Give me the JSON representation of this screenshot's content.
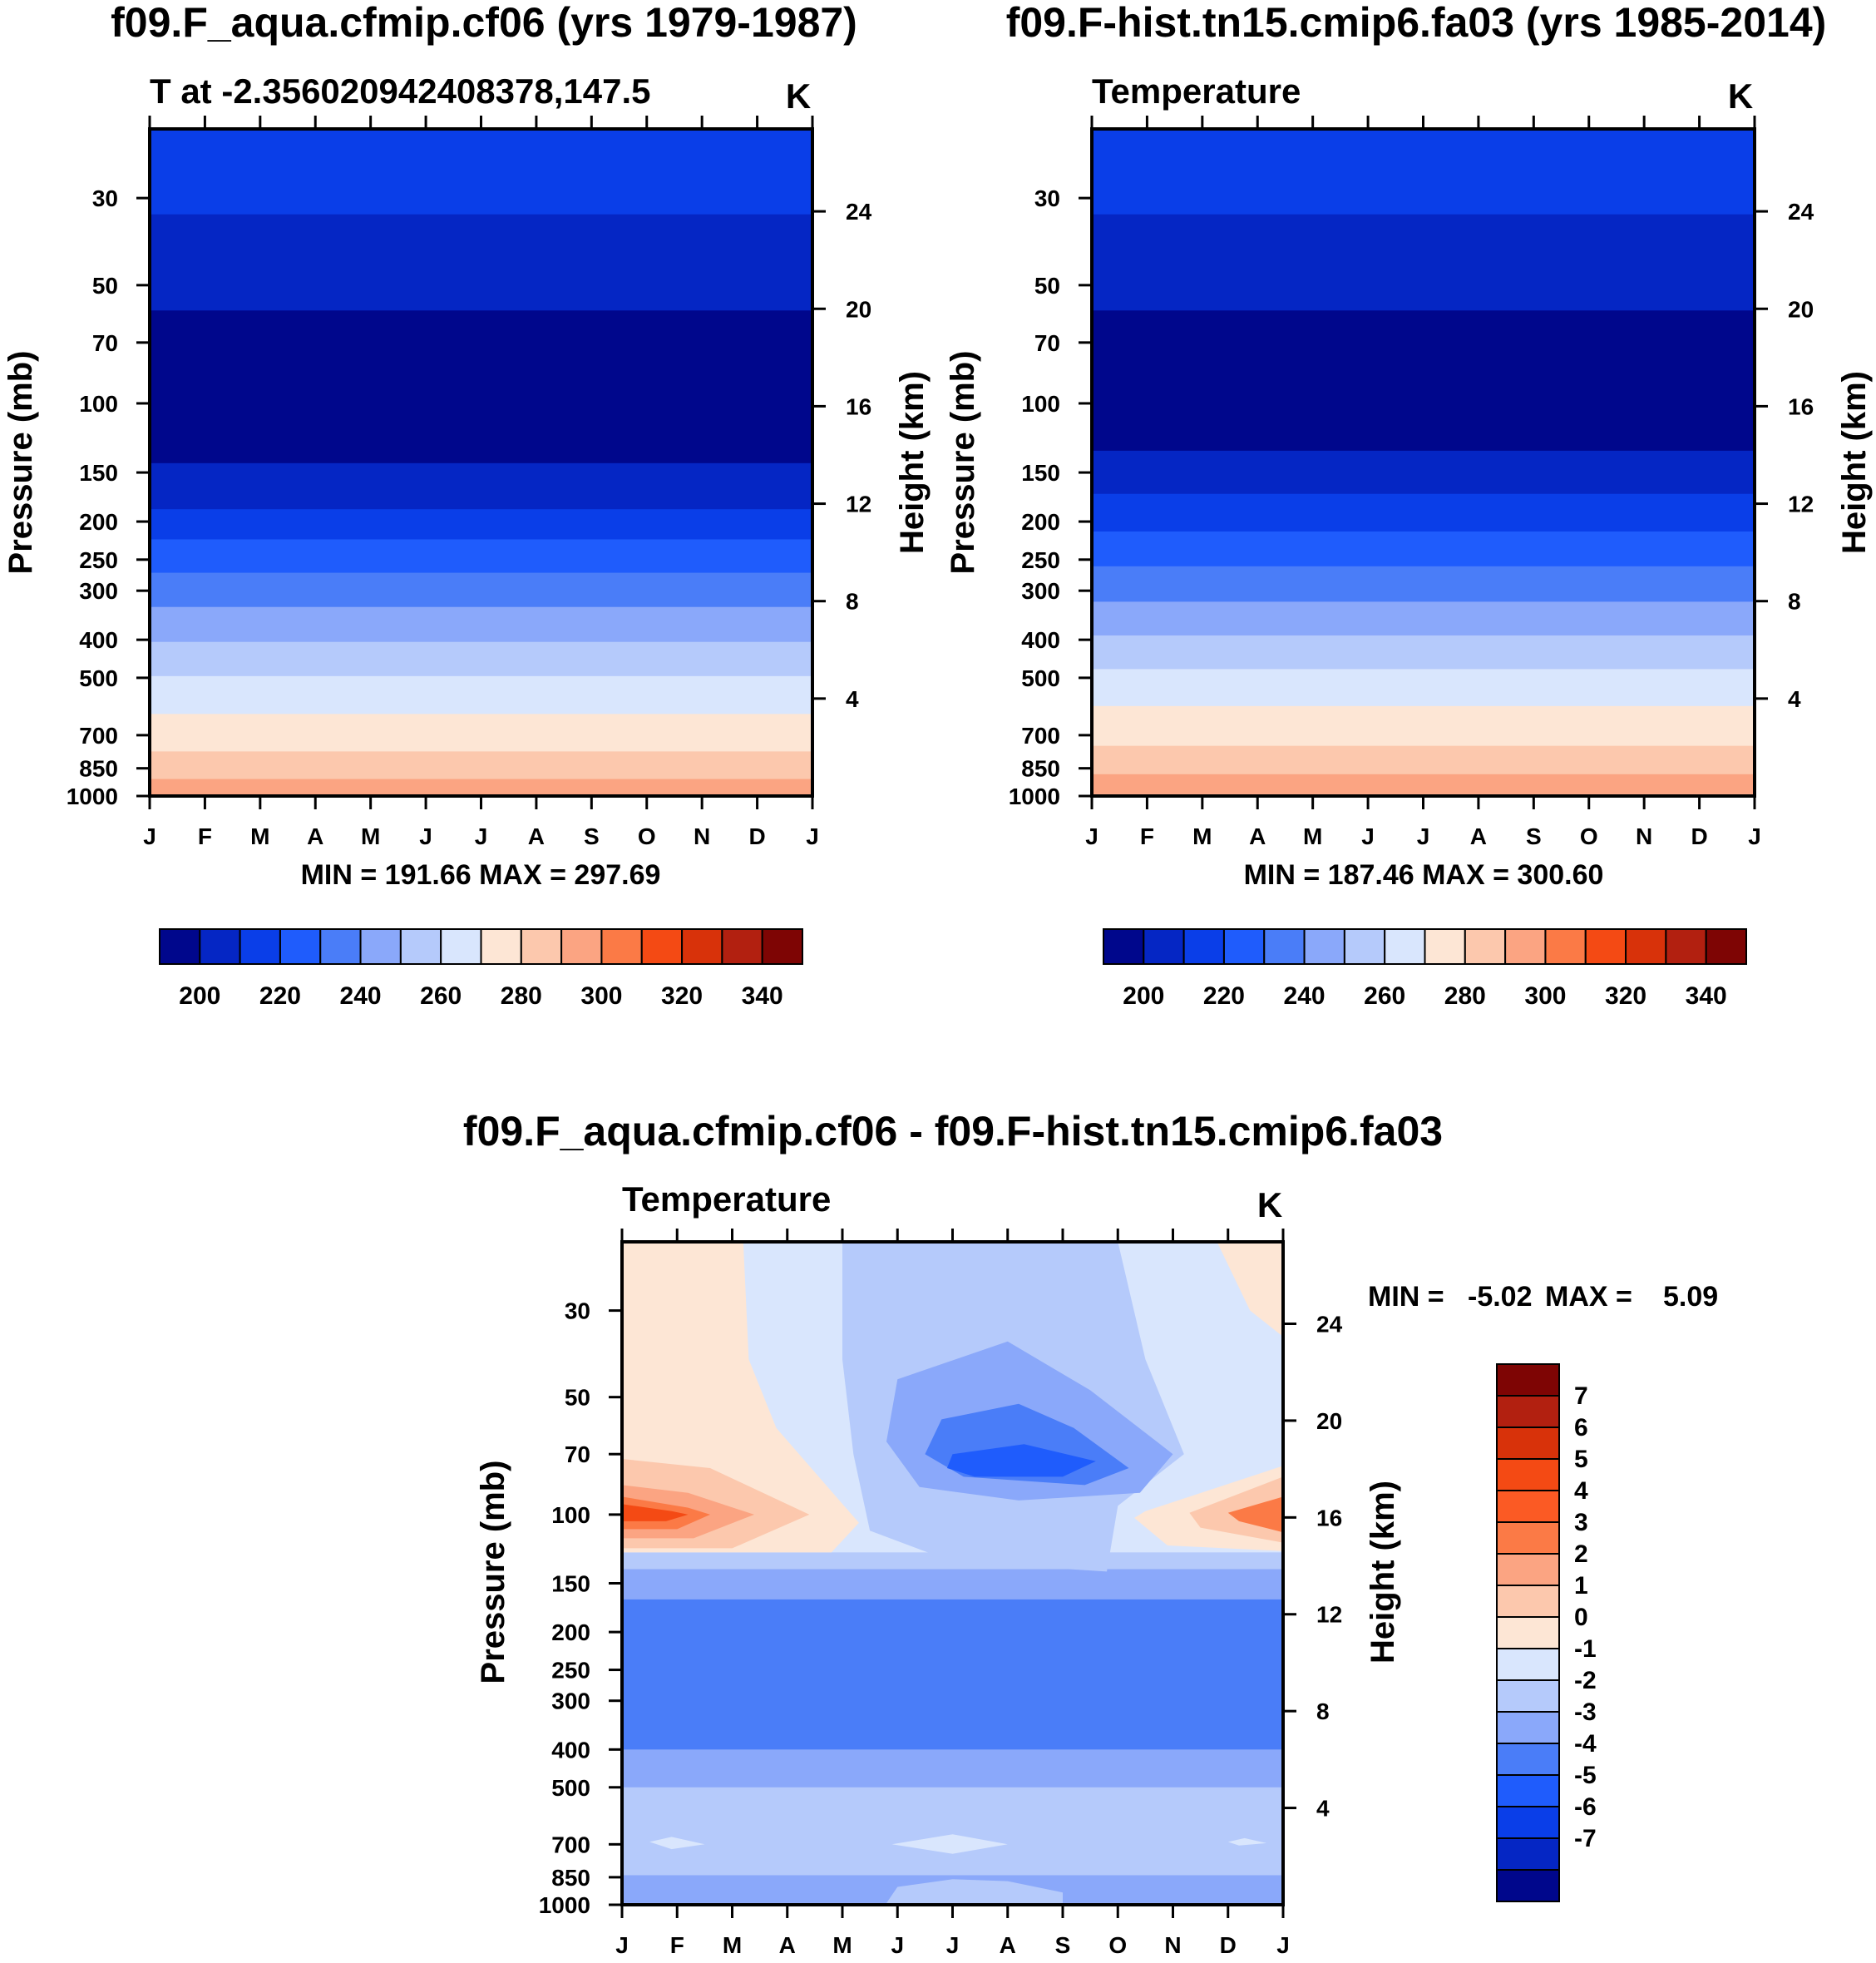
{
  "chart_data": [
    {
      "type": "contour",
      "title": "f09.F_aqua.cfmip.cf06 (yrs 1979-1987)",
      "subtitle_left": "T at -2.356020942408378,147.5",
      "units": "K",
      "xlabel": "",
      "ylabel": "Pressure (mb)",
      "ylabel_right": "Height (km)",
      "x_ticks": [
        "J",
        "F",
        "M",
        "A",
        "M",
        "J",
        "J",
        "A",
        "S",
        "O",
        "N",
        "D",
        "J"
      ],
      "y_ticks": [
        30,
        50,
        70,
        100,
        150,
        200,
        250,
        300,
        400,
        500,
        700,
        850,
        1000
      ],
      "y_right_ticks": [
        4,
        8,
        12,
        16,
        20,
        24
      ],
      "y_range": [
        20,
        1000
      ],
      "stats": "MIN = 191.66 MAX = 297.69",
      "bands": [
        {
          "from": 20,
          "to": 33,
          "color": "#0a3ee8"
        },
        {
          "from": 33,
          "to": 58,
          "color": "#0526c4"
        },
        {
          "from": 58,
          "to": 142,
          "color": "#00078c"
        },
        {
          "from": 142,
          "to": 186,
          "color": "#0526c4"
        },
        {
          "from": 186,
          "to": 222,
          "color": "#0a3ee8"
        },
        {
          "from": 222,
          "to": 270,
          "color": "#1f5cfc"
        },
        {
          "from": 270,
          "to": 330,
          "color": "#4a7df8"
        },
        {
          "from": 330,
          "to": 405,
          "color": "#8aa8fa"
        },
        {
          "from": 405,
          "to": 495,
          "color": "#b5cafb"
        },
        {
          "from": 495,
          "to": 618,
          "color": "#d9e6fd"
        },
        {
          "from": 618,
          "to": 770,
          "color": "#fde6d5"
        },
        {
          "from": 770,
          "to": 905,
          "color": "#fcc8ad"
        },
        {
          "from": 905,
          "to": 1000,
          "color": "#fba482"
        }
      ],
      "colorbar": {
        "labels": [
          200,
          220,
          240,
          260,
          280,
          300,
          320,
          340
        ],
        "colors": [
          "#00078c",
          "#0526c4",
          "#0a3ee8",
          "#1f5cfc",
          "#4a7df8",
          "#8aa8fa",
          "#b5cafb",
          "#d9e6fd",
          "#fde6d5",
          "#fcc8ad",
          "#fba482",
          "#fb7a46",
          "#f44a14",
          "#d8320a",
          "#b22010",
          "#7e0504"
        ]
      }
    },
    {
      "type": "contour",
      "title": "f09.F-hist.tn15.cmip6.fa03 (yrs 1985-2014)",
      "subtitle_left": "Temperature",
      "units": "K",
      "xlabel": "",
      "ylabel": "Pressure (mb)",
      "ylabel_right": "Height (km)",
      "x_ticks": [
        "J",
        "F",
        "M",
        "A",
        "M",
        "J",
        "J",
        "A",
        "S",
        "O",
        "N",
        "D",
        "J"
      ],
      "y_ticks": [
        30,
        50,
        70,
        100,
        150,
        200,
        250,
        300,
        400,
        500,
        700,
        850,
        1000
      ],
      "y_right_ticks": [
        4,
        8,
        12,
        16,
        20,
        24
      ],
      "y_range": [
        20,
        1000
      ],
      "stats": "MIN = 187.46 MAX = 300.60",
      "bands": [
        {
          "from": 20,
          "to": 33,
          "color": "#0a3ee8"
        },
        {
          "from": 33,
          "to": 58,
          "color": "#0526c4"
        },
        {
          "from": 58,
          "to": 132,
          "color": "#00078c"
        },
        {
          "from": 132,
          "to": 170,
          "color": "#0526c4"
        },
        {
          "from": 170,
          "to": 212,
          "color": "#0a3ee8"
        },
        {
          "from": 212,
          "to": 260,
          "color": "#1f5cfc"
        },
        {
          "from": 260,
          "to": 320,
          "color": "#4a7df8"
        },
        {
          "from": 320,
          "to": 390,
          "color": "#8aa8fa"
        },
        {
          "from": 390,
          "to": 475,
          "color": "#b5cafb"
        },
        {
          "from": 475,
          "to": 590,
          "color": "#d9e6fd"
        },
        {
          "from": 590,
          "to": 745,
          "color": "#fde6d5"
        },
        {
          "from": 745,
          "to": 880,
          "color": "#fcc8ad"
        },
        {
          "from": 880,
          "to": 990,
          "color": "#fba482"
        },
        {
          "from": 990,
          "to": 1000,
          "color": "#ffffff"
        }
      ],
      "colorbar": {
        "labels": [
          200,
          220,
          240,
          260,
          280,
          300,
          320,
          340
        ],
        "colors": [
          "#00078c",
          "#0526c4",
          "#0a3ee8",
          "#1f5cfc",
          "#4a7df8",
          "#8aa8fa",
          "#b5cafb",
          "#d9e6fd",
          "#fde6d5",
          "#fcc8ad",
          "#fba482",
          "#fb7a46",
          "#f44a14",
          "#d8320a",
          "#b22010",
          "#7e0504"
        ]
      }
    },
    {
      "type": "contour",
      "title": "f09.F_aqua.cfmip.cf06 - f09.F-hist.tn15.cmip6.fa03",
      "subtitle_left": "Temperature",
      "units": "K",
      "xlabel": "",
      "ylabel": "Pressure (mb)",
      "ylabel_right": "Height (km)",
      "x_ticks": [
        "J",
        "F",
        "M",
        "A",
        "M",
        "J",
        "J",
        "A",
        "S",
        "O",
        "N",
        "D",
        "J"
      ],
      "y_ticks": [
        30,
        50,
        70,
        100,
        150,
        200,
        250,
        300,
        400,
        500,
        700,
        850,
        1000
      ],
      "y_right_ticks": [
        4,
        8,
        12,
        16,
        20,
        24
      ],
      "y_range": [
        20,
        1000
      ],
      "stats_min_label": "MIN =",
      "stats_min": "-5.02",
      "stats_max_label": "MAX =",
      "stats_max": "5.09",
      "bands": [
        {
          "from": 20,
          "to": 125,
          "color": "#d9e6fd"
        },
        {
          "from": 125,
          "to": 138,
          "color": "#b5cafb"
        },
        {
          "from": 138,
          "to": 165,
          "color": "#8aa8fa"
        },
        {
          "from": 165,
          "to": 400,
          "color": "#4a7df8"
        },
        {
          "from": 400,
          "to": 500,
          "color": "#8aa8fa"
        },
        {
          "from": 500,
          "to": 840,
          "color": "#b5cafb"
        },
        {
          "from": 840,
          "to": 990,
          "color": "#8aa8fa"
        },
        {
          "from": 990,
          "to": 1000,
          "color": "#ffffff"
        }
      ],
      "regions": [
        {
          "color": "#fde6d5",
          "points": [
            [
              0,
              20
            ],
            [
              2.2,
              20
            ],
            [
              2.3,
              40
            ],
            [
              2.8,
              60
            ],
            [
              4.3,
              105
            ],
            [
              3.8,
              125
            ],
            [
              0,
              125
            ]
          ]
        },
        {
          "color": "#fcc8ad",
          "points": [
            [
              0,
              72
            ],
            [
              1.6,
              76
            ],
            [
              3.4,
              100
            ],
            [
              2.0,
              122
            ],
            [
              0,
              122
            ]
          ]
        },
        {
          "color": "#fba482",
          "points": [
            [
              0,
              84
            ],
            [
              1.2,
              88
            ],
            [
              2.4,
              100
            ],
            [
              1.3,
              115
            ],
            [
              0,
              115
            ]
          ]
        },
        {
          "color": "#fb7a46",
          "points": [
            [
              0,
              90
            ],
            [
              1.2,
              96
            ],
            [
              1.6,
              100
            ],
            [
              1.0,
              109
            ],
            [
              0,
              109
            ]
          ]
        },
        {
          "color": "#f44a14",
          "points": [
            [
              0,
              94
            ],
            [
              0.9,
              98
            ],
            [
              1.2,
              100
            ],
            [
              0.8,
              104
            ],
            [
              0,
              104
            ]
          ]
        },
        {
          "color": "#fde6d5",
          "points": [
            [
              12,
              75
            ],
            [
              9.5,
              98
            ],
            [
              9.3,
              102
            ],
            [
              9.9,
              120
            ],
            [
              12,
              124
            ]
          ]
        },
        {
          "color": "#fcc8ad",
          "points": [
            [
              12,
              80
            ],
            [
              10.3,
              99
            ],
            [
              10.5,
              108
            ],
            [
              12,
              118
            ]
          ]
        },
        {
          "color": "#fb7a46",
          "points": [
            [
              12,
              90
            ],
            [
              11,
              99
            ],
            [
              11.2,
              104
            ],
            [
              12,
              111
            ]
          ]
        },
        {
          "color": "#fde6d5",
          "points": [
            [
              10.8,
              20
            ],
            [
              12,
              20
            ],
            [
              12,
              35
            ],
            [
              11.4,
              30
            ]
          ]
        },
        {
          "color": "#b5cafb",
          "points": [
            [
              4.0,
              20
            ],
            [
              9.0,
              20
            ],
            [
              9.5,
              40
            ],
            [
              10.2,
              70
            ],
            [
              9.0,
              95
            ],
            [
              8.8,
              140
            ],
            [
              6.0,
              132
            ],
            [
              4.5,
              110
            ],
            [
              4.2,
              70
            ],
            [
              4.0,
              40
            ]
          ]
        },
        {
          "color": "#8aa8fa",
          "points": [
            [
              5.0,
              45
            ],
            [
              7.0,
              36
            ],
            [
              8.5,
              48
            ],
            [
              10.0,
              70
            ],
            [
              9.4,
              88
            ],
            [
              7.2,
              92
            ],
            [
              5.4,
              85
            ],
            [
              4.8,
              65
            ]
          ]
        },
        {
          "color": "#4a7df8",
          "points": [
            [
              5.8,
              57
            ],
            [
              7.2,
              52
            ],
            [
              8.2,
              60
            ],
            [
              9.2,
              76
            ],
            [
              8.4,
              84
            ],
            [
              6.2,
              80
            ],
            [
              5.5,
              70
            ]
          ]
        },
        {
          "color": "#1f5cfc",
          "points": [
            [
              6.0,
              70
            ],
            [
              7.3,
              66
            ],
            [
              8.6,
              73
            ],
            [
              8.0,
              80
            ],
            [
              6.4,
              80
            ],
            [
              5.9,
              76
            ]
          ]
        },
        {
          "color": "#d9e6fd",
          "points": [
            [
              0.5,
              690
            ],
            [
              0.9,
              670
            ],
            [
              1.5,
              700
            ],
            [
              0.9,
              720
            ]
          ]
        },
        {
          "color": "#d9e6fd",
          "points": [
            [
              4.9,
              700
            ],
            [
              6.0,
              660
            ],
            [
              7.0,
              700
            ],
            [
              6.0,
              740
            ]
          ]
        },
        {
          "color": "#d9e6fd",
          "points": [
            [
              11.0,
              690
            ],
            [
              11.3,
              675
            ],
            [
              11.7,
              695
            ],
            [
              11.2,
              705
            ]
          ]
        },
        {
          "color": "#b5cafb",
          "points": [
            [
              4.8,
              990
            ],
            [
              5.0,
              900
            ],
            [
              6.0,
              860
            ],
            [
              7.0,
              870
            ],
            [
              8.0,
              930
            ],
            [
              8.0,
              990
            ]
          ]
        }
      ],
      "colorbar": {
        "labels": [
          7,
          6,
          5,
          4,
          3,
          2,
          1,
          0,
          -1,
          -2,
          -3,
          -4,
          -5,
          -6,
          -7
        ],
        "colors": [
          "#7e0504",
          "#b22010",
          "#d8320a",
          "#f44a14",
          "#fb5a24",
          "#fb7a46",
          "#fba482",
          "#fcc8ad",
          "#fde6d5",
          "#d9e6fd",
          "#b5cafb",
          "#8aa8fa",
          "#4a7df8",
          "#1f5cfc",
          "#0a3ee8",
          "#0526c4",
          "#00078c"
        ]
      }
    }
  ]
}
